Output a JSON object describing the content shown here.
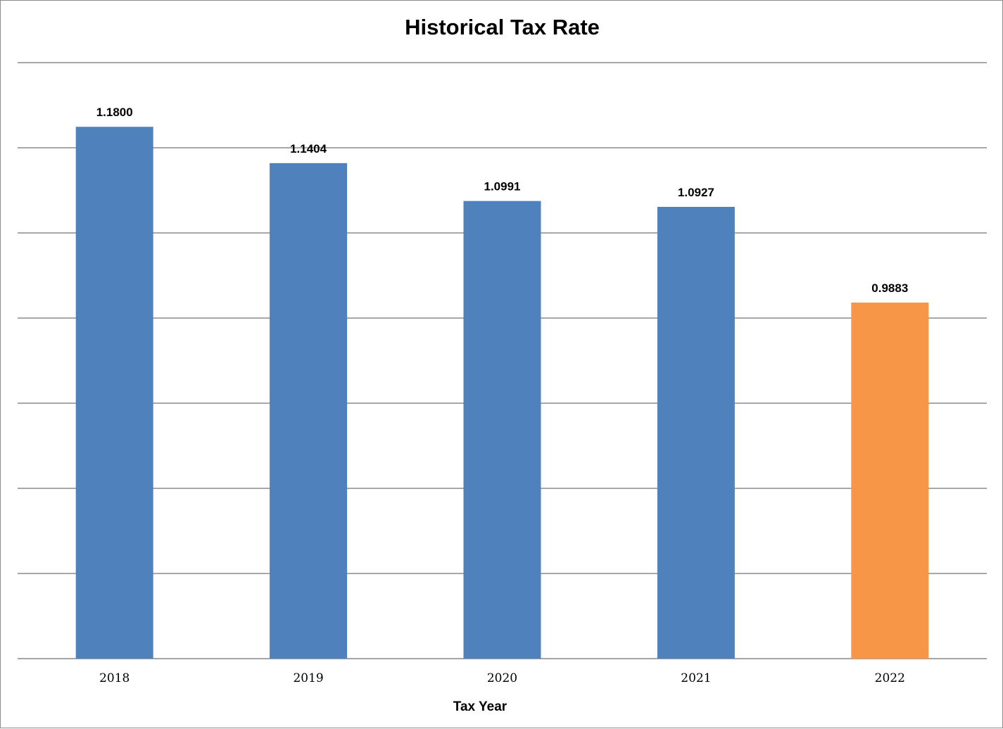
{
  "chart_data": {
    "type": "bar",
    "title": "Historical Tax Rate",
    "xlabel": "Tax Year",
    "ylabel": "",
    "categories": [
      "2018",
      "2019",
      "2020",
      "2021",
      "2022"
    ],
    "values": [
      1.18,
      1.1404,
      1.0991,
      1.0927,
      0.9883
    ],
    "data_labels": [
      "1.1800",
      "1.1404",
      "1.0991",
      "1.0927",
      "0.9883"
    ],
    "bar_colors": [
      "#4f81bd",
      "#4f81bd",
      "#4f81bd",
      "#4f81bd",
      "#f79646"
    ],
    "ylim": [
      0.6,
      1.25
    ],
    "yticks_visible": false,
    "grid": true,
    "legend": "none"
  }
}
